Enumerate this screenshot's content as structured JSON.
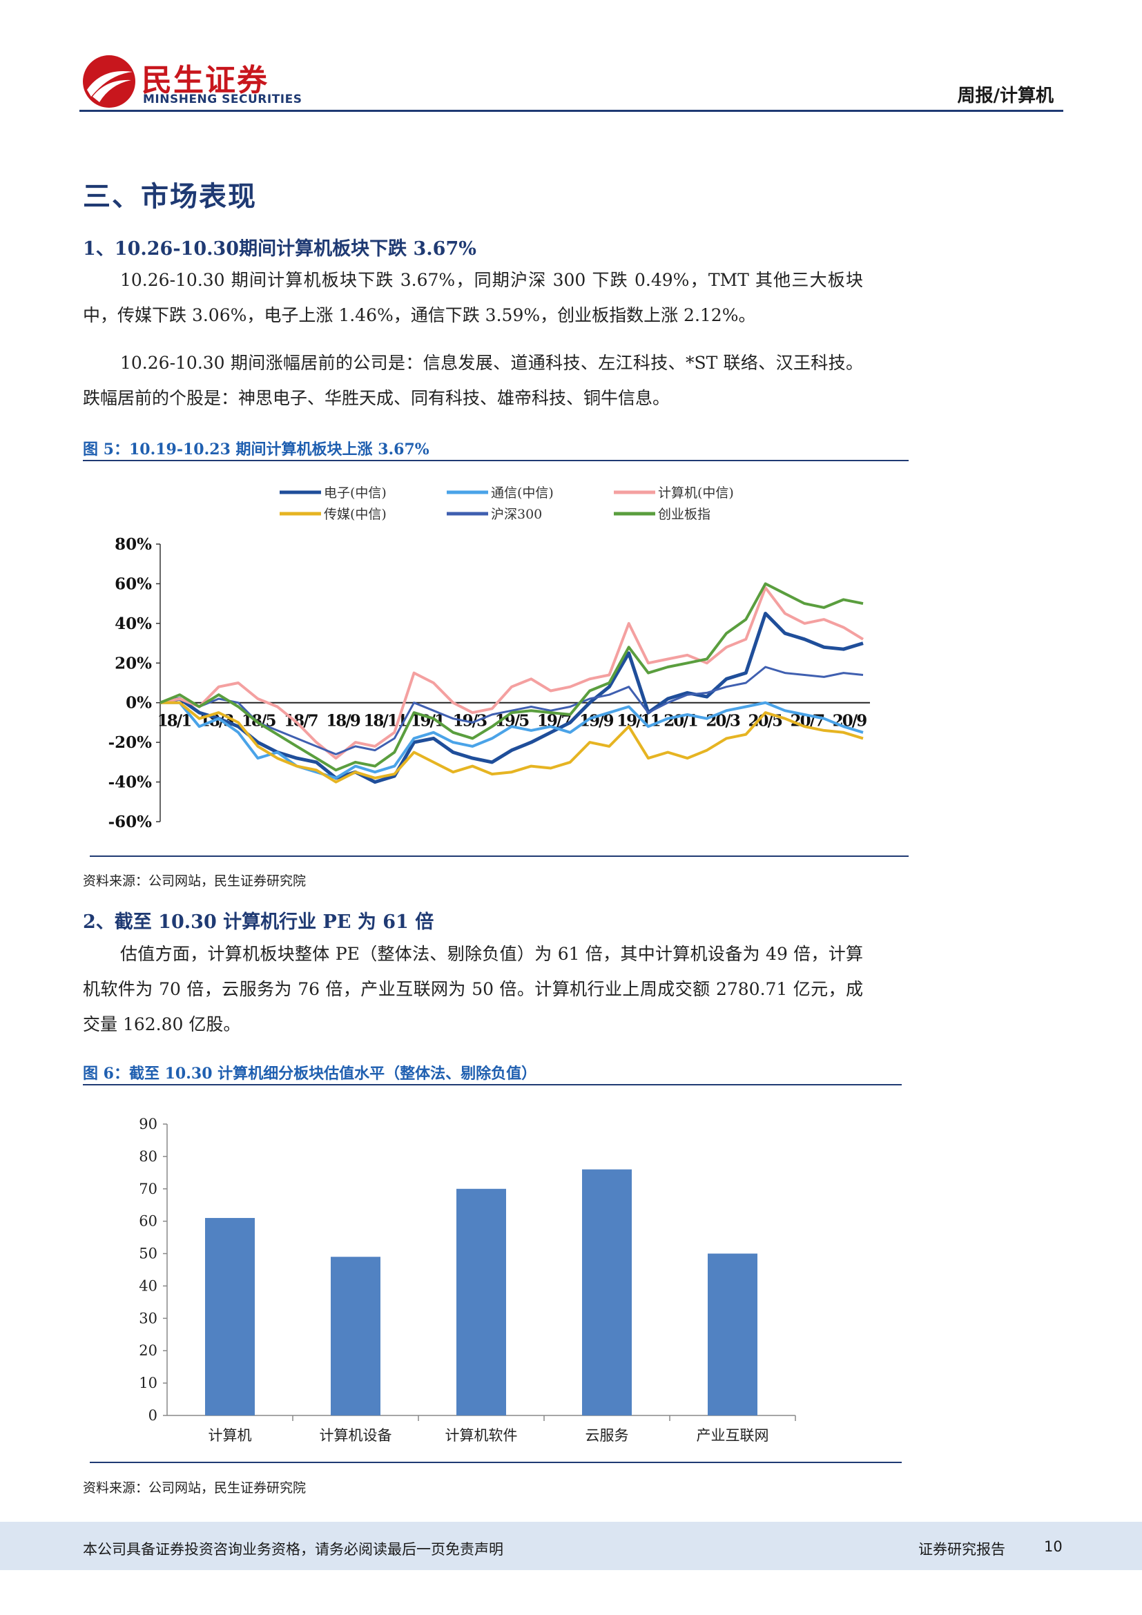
{
  "header": {
    "brand_cn": "民生证券",
    "brand_en": "MINSHENG SECURITIES",
    "report_type": "周报/计算机"
  },
  "section": {
    "title": "三、市场表现",
    "sub1": {
      "title": "1、10.26-10.30期间计算机板块下跌 3.67%",
      "p1": "10.26-10.30 期间计算机板块下跌 3.67%，同期沪深 300 下跌 0.49%，TMT 其他三大板块中，传媒下跌 3.06%，电子上涨 1.46%，通信下跌 3.59%，创业板指数上涨 2.12%。",
      "p2": "10.26-10.30 期间涨幅居前的公司是：信息发展、道通科技、左江科技、*ST 联络、汉王科技。跌幅居前的个股是：神思电子、华胜天成、同有科技、雄帝科技、铜牛信息。"
    },
    "sub2": {
      "title": "2、截至 10.30 计算机行业 PE 为 61 倍",
      "p1": "估值方面，计算机板块整体 PE（整体法、剔除负值）为 61 倍，其中计算机设备为 49 倍，计算机软件为 70 倍，云服务为 76 倍，产业互联网为 50 倍。计算机行业上周成交额 2780.71 亿元，成交量 162.80 亿股。"
    }
  },
  "figure5": {
    "title": "图 5：10.19-10.23 期间计算机板块上涨 3.67%",
    "source": "资料来源：公司网站，民生证券研究院"
  },
  "figure6": {
    "title": "图 6：截至 10.30 计算机细分板块估值水平（整体法、剔除负值）",
    "source": "资料来源：公司网站，民生证券研究院"
  },
  "chart_data": [
    {
      "type": "line",
      "title": "",
      "ylim": [
        -60,
        80
      ],
      "y_ticks": [
        "80%",
        "60%",
        "40%",
        "20%",
        "0%",
        "-20%",
        "-40%",
        "-60%"
      ],
      "x_ticks": [
        "18/1",
        "18/3",
        "18/5",
        "18/7",
        "18/9",
        "18/11",
        "19/1",
        "19/3",
        "19/5",
        "19/7",
        "19/9",
        "19/11",
        "20/1",
        "20/3",
        "20/5",
        "20/7",
        "20/9"
      ],
      "legend_position": "top",
      "grid": false,
      "series": [
        {
          "name": "电子(中信)",
          "color": "#1f4e9a",
          "width": 5,
          "values": [
            0,
            2,
            -5,
            -8,
            -12,
            -20,
            -25,
            -28,
            -30,
            -38,
            -35,
            -40,
            -37,
            -20,
            -18,
            -25,
            -28,
            -30,
            -24,
            -20,
            -15,
            -10,
            0,
            8,
            25,
            -5,
            2,
            5,
            3,
            12,
            15,
            45,
            35,
            32,
            28,
            27,
            30
          ]
        },
        {
          "name": "通信(中信)",
          "color": "#4aa3e8",
          "width": 4,
          "values": [
            0,
            0,
            -12,
            -8,
            -15,
            -28,
            -25,
            -32,
            -35,
            -38,
            -32,
            -35,
            -32,
            -18,
            -15,
            -20,
            -22,
            -18,
            -12,
            -14,
            -12,
            -15,
            -8,
            -5,
            -2,
            -12,
            -8,
            -6,
            -8,
            -4,
            -2,
            0,
            -4,
            -6,
            -8,
            -12,
            -15
          ]
        },
        {
          "name": "计算机(中信)",
          "color": "#f4a0a0",
          "width": 4,
          "values": [
            0,
            2,
            -2,
            8,
            10,
            2,
            -2,
            -10,
            -20,
            -28,
            -20,
            -22,
            -15,
            15,
            10,
            0,
            -5,
            -3,
            8,
            12,
            6,
            8,
            12,
            14,
            40,
            20,
            22,
            24,
            20,
            28,
            32,
            58,
            45,
            40,
            42,
            38,
            32
          ]
        },
        {
          "name": "传媒(中信)",
          "color": "#e6b422",
          "width": 4,
          "values": [
            0,
            0,
            -8,
            -5,
            -10,
            -22,
            -28,
            -32,
            -34,
            -40,
            -35,
            -38,
            -36,
            -25,
            -30,
            -35,
            -32,
            -36,
            -35,
            -32,
            -33,
            -30,
            -20,
            -22,
            -12,
            -28,
            -25,
            -28,
            -24,
            -18,
            -16,
            -5,
            -8,
            -12,
            -14,
            -15,
            -18
          ]
        },
        {
          "name": "沪深300",
          "color": "#3f5fb0",
          "width": 3,
          "values": [
            0,
            4,
            -2,
            2,
            0,
            -10,
            -14,
            -18,
            -22,
            -26,
            -22,
            -24,
            -18,
            0,
            -4,
            -8,
            -10,
            -6,
            -4,
            -2,
            -4,
            -2,
            2,
            4,
            8,
            -5,
            0,
            4,
            5,
            8,
            10,
            18,
            15,
            14,
            13,
            15,
            14
          ]
        },
        {
          "name": "创业板指",
          "color": "#5a9e3e",
          "width": 4,
          "values": [
            0,
            4,
            -2,
            4,
            -2,
            -10,
            -16,
            -22,
            -28,
            -34,
            -30,
            -32,
            -25,
            -5,
            -8,
            -15,
            -18,
            -12,
            -5,
            -4,
            -5,
            -6,
            6,
            10,
            28,
            15,
            18,
            20,
            22,
            35,
            42,
            60,
            55,
            50,
            48,
            52,
            50
          ]
        }
      ]
    },
    {
      "type": "bar",
      "title": "",
      "categories": [
        "计算机",
        "计算机设备",
        "计算机软件",
        "云服务",
        "产业互联网"
      ],
      "values": [
        61,
        49,
        70,
        76,
        50
      ],
      "ylim": [
        0,
        90
      ],
      "y_ticks": [
        0,
        10,
        20,
        30,
        40,
        50,
        60,
        70,
        80,
        90
      ],
      "color": "#5182c2",
      "grid": false
    }
  ],
  "footer": {
    "disclaimer": "本公司具备证券投资咨询业务资格，请务必阅读最后一页免责声明",
    "report_label": "证券研究报告",
    "page": "10"
  }
}
